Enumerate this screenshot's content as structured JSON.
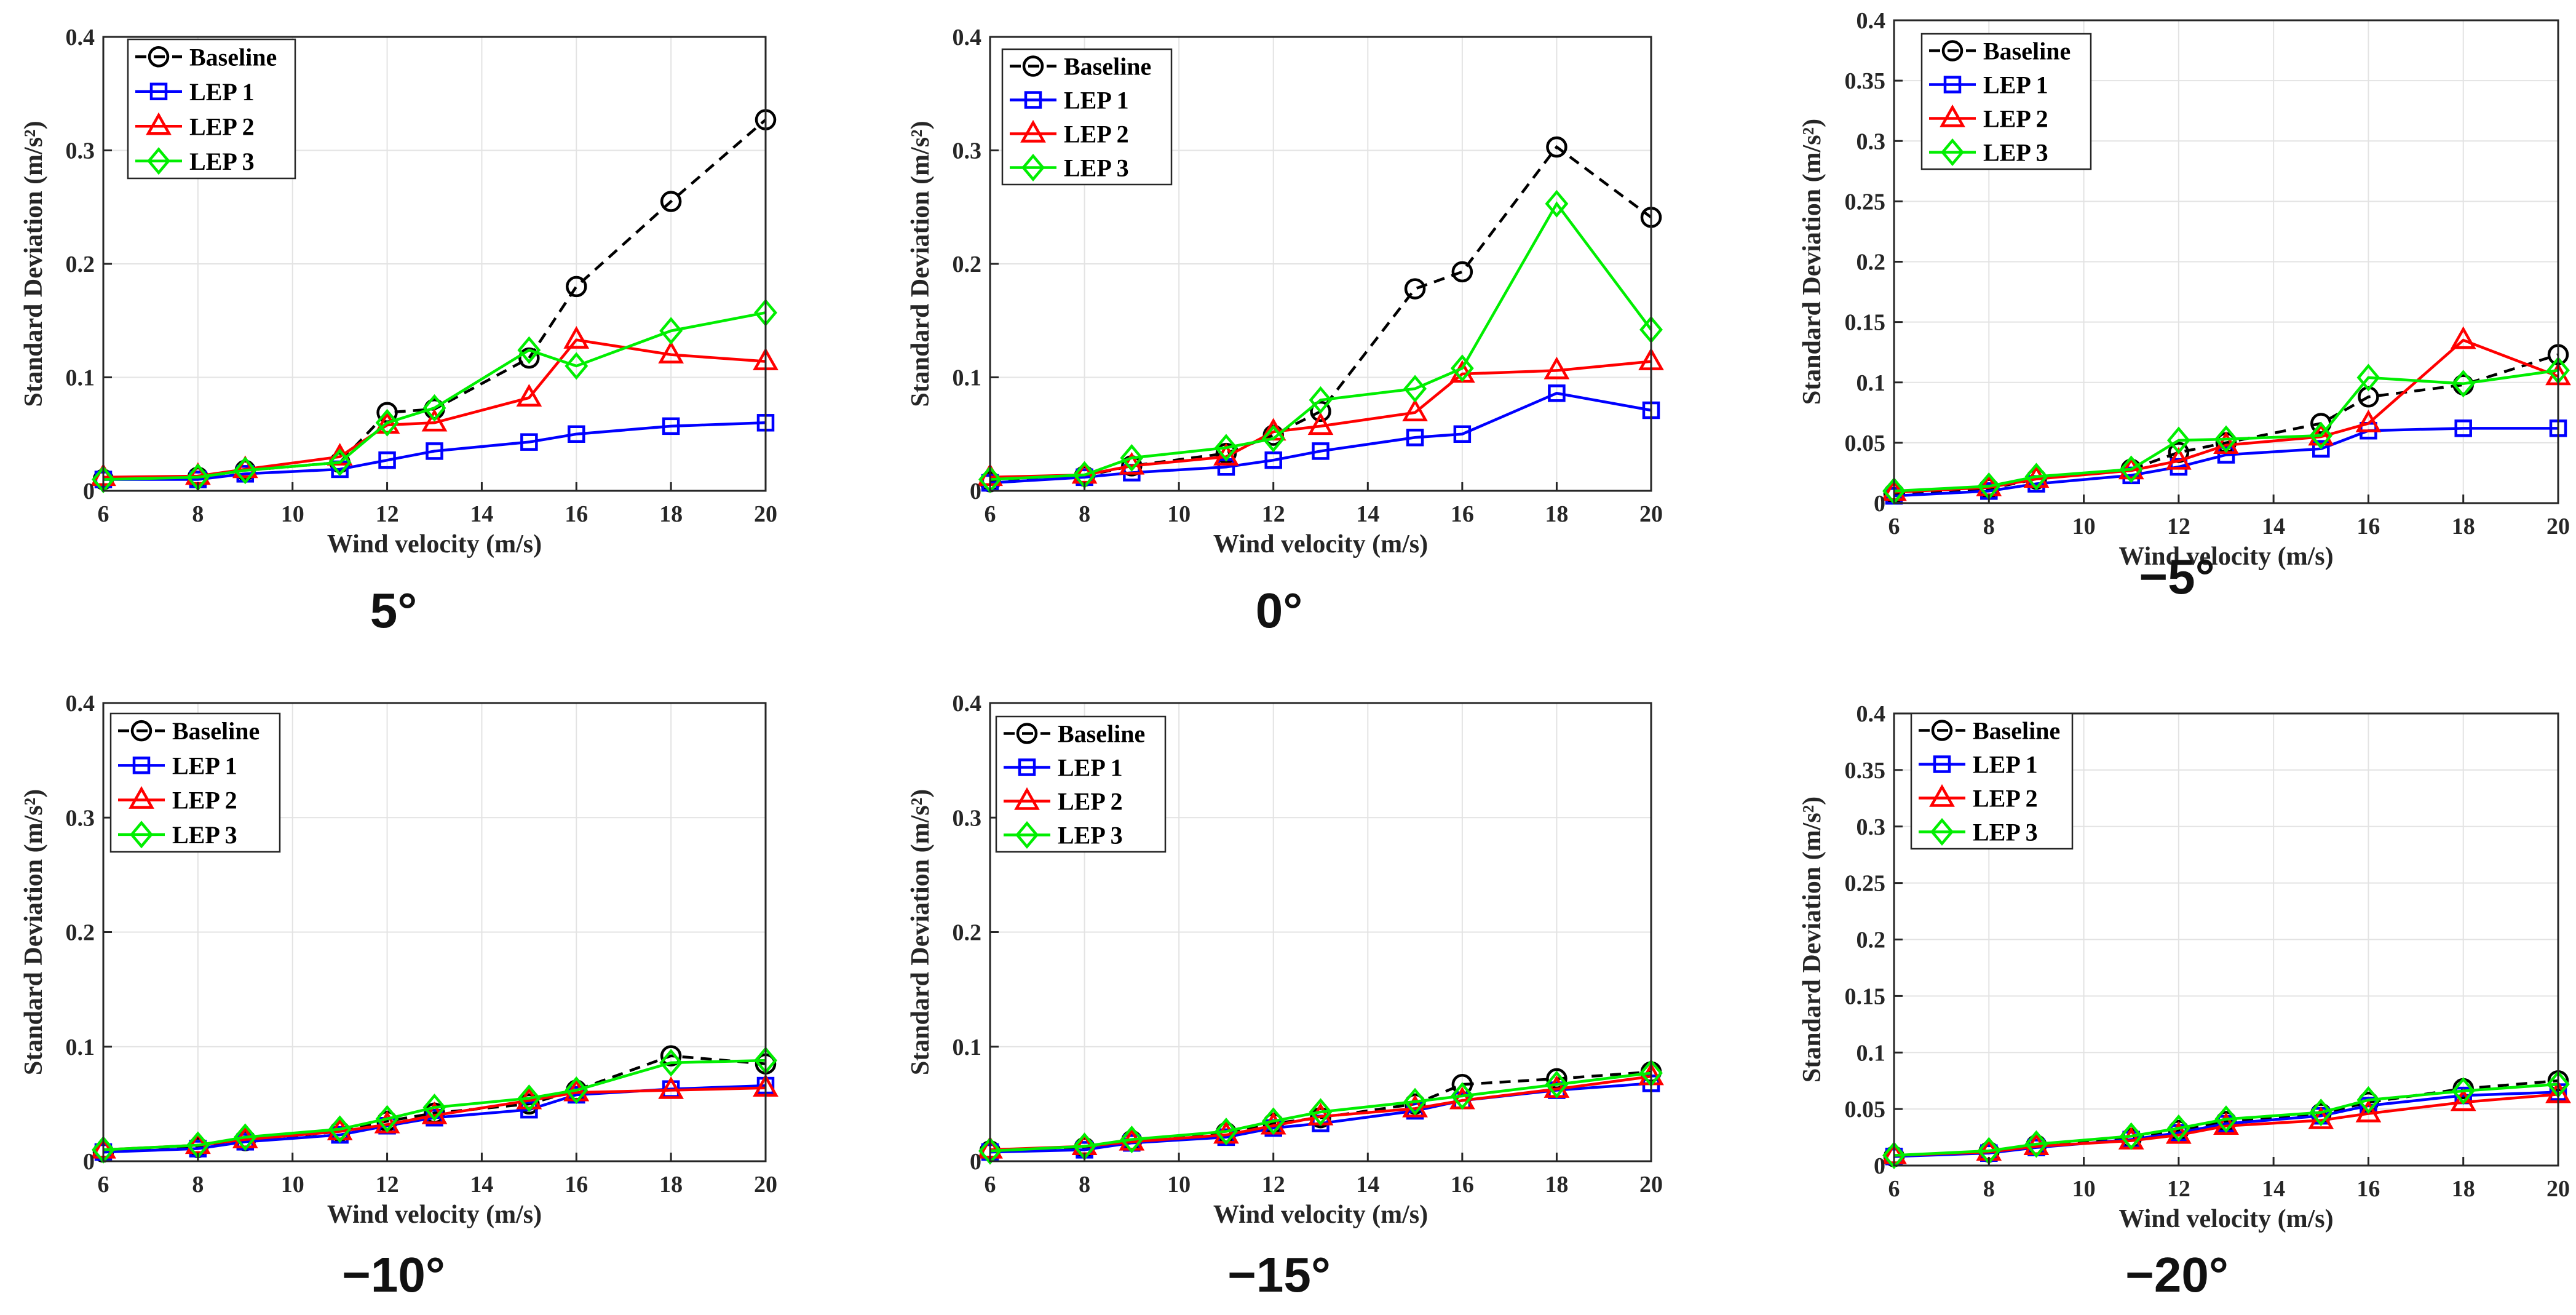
{
  "figure": {
    "legend_labels": [
      "Baseline",
      "LEP 1",
      "LEP 2",
      "LEP 3"
    ],
    "series_colors": {
      "Baseline": "#000000",
      "LEP 1": "#0000ff",
      "LEP 2": "#ff0000",
      "LEP 3": "#00ee00"
    }
  },
  "chart_data": [
    {
      "type": "line",
      "title": "",
      "caption": "5°",
      "xlabel": "Wind velocity (m/s)",
      "ylabel": "Standard Deviation (m/s²)",
      "xlim": [
        6,
        20
      ],
      "ylim": [
        0,
        0.4
      ],
      "xticks": [
        6,
        8,
        10,
        12,
        14,
        16,
        18,
        20
      ],
      "yticks": [
        0,
        0.1,
        0.2,
        0.3,
        0.4
      ],
      "yticklabels": [
        "0",
        "0.1",
        "0.2",
        "0.3",
        "0.4"
      ],
      "grid": true,
      "legend": "top-left",
      "x": [
        6,
        8,
        9,
        11,
        12,
        13,
        15,
        16,
        18,
        20
      ],
      "series": [
        {
          "name": "Baseline",
          "marker": "circle",
          "dash": true,
          "values": [
            0.01,
            0.012,
            0.018,
            0.025,
            0.069,
            0.072,
            0.117,
            0.18,
            0.255,
            0.327
          ]
        },
        {
          "name": "LEP 1",
          "marker": "square",
          "dash": false,
          "values": [
            0.01,
            0.01,
            0.015,
            0.019,
            0.027,
            0.035,
            0.043,
            0.05,
            0.057,
            0.06
          ]
        },
        {
          "name": "LEP 2",
          "marker": "triangle",
          "dash": false,
          "values": [
            0.012,
            0.013,
            0.019,
            0.03,
            0.058,
            0.06,
            0.082,
            0.133,
            0.12,
            0.114
          ]
        },
        {
          "name": "LEP 3",
          "marker": "diamond",
          "dash": false,
          "values": [
            0.01,
            0.012,
            0.018,
            0.025,
            0.06,
            0.073,
            0.124,
            0.11,
            0.141,
            0.157
          ]
        }
      ]
    },
    {
      "type": "line",
      "title": "",
      "caption": "0°",
      "xlabel": "Wind velocity (m/s)",
      "ylabel": "Standard Deviation (m/s²)",
      "xlim": [
        6,
        20
      ],
      "ylim": [
        0,
        0.4
      ],
      "xticks": [
        6,
        8,
        10,
        12,
        14,
        16,
        18,
        20
      ],
      "yticks": [
        0,
        0.1,
        0.2,
        0.3,
        0.4
      ],
      "yticklabels": [
        "0",
        "0.1",
        "0.2",
        "0.3",
        "0.4"
      ],
      "grid": true,
      "legend": "top-left",
      "x": [
        6,
        8,
        9,
        11,
        12,
        13,
        15,
        16,
        18,
        20
      ],
      "series": [
        {
          "name": "Baseline",
          "marker": "circle",
          "dash": true,
          "values": [
            0.008,
            0.013,
            0.022,
            0.033,
            0.049,
            0.07,
            0.178,
            0.193,
            0.303,
            0.241
          ]
        },
        {
          "name": "LEP 1",
          "marker": "square",
          "dash": false,
          "values": [
            0.007,
            0.012,
            0.016,
            0.021,
            0.027,
            0.035,
            0.047,
            0.05,
            0.086,
            0.071
          ]
        },
        {
          "name": "LEP 2",
          "marker": "triangle",
          "dash": false,
          "values": [
            0.012,
            0.014,
            0.022,
            0.03,
            0.052,
            0.057,
            0.069,
            0.103,
            0.106,
            0.114
          ]
        },
        {
          "name": "LEP 3",
          "marker": "diamond",
          "dash": false,
          "values": [
            0.01,
            0.014,
            0.029,
            0.038,
            0.046,
            0.08,
            0.09,
            0.108,
            0.253,
            0.142
          ]
        }
      ]
    },
    {
      "type": "line",
      "title": "",
      "caption": "−5°",
      "xlabel": "Wind velocity (m/s)",
      "ylabel": "Standard Deviation (m/s²)",
      "xlim": [
        6,
        20
      ],
      "ylim": [
        0,
        0.4
      ],
      "xticks": [
        6,
        8,
        10,
        12,
        14,
        16,
        18,
        20
      ],
      "yticks": [
        0,
        0.05,
        0.1,
        0.15,
        0.2,
        0.25,
        0.3,
        0.35,
        0.4
      ],
      "yticklabels": [
        "0",
        "0.05",
        "0.1",
        "0.15",
        "0.2",
        "0.25",
        "0.3",
        "0.35",
        "0.4"
      ],
      "grid": true,
      "legend": "top-left",
      "x": [
        6,
        8,
        9,
        11,
        12,
        13,
        15,
        16,
        18,
        20
      ],
      "series": [
        {
          "name": "Baseline",
          "marker": "circle",
          "dash": true,
          "values": [
            0.008,
            0.012,
            0.02,
            0.028,
            0.042,
            0.05,
            0.066,
            0.088,
            0.098,
            0.123
          ]
        },
        {
          "name": "LEP 1",
          "marker": "square",
          "dash": false,
          "values": [
            0.006,
            0.01,
            0.016,
            0.023,
            0.03,
            0.04,
            0.045,
            0.06,
            0.062,
            0.062
          ]
        },
        {
          "name": "LEP 2",
          "marker": "triangle",
          "dash": false,
          "values": [
            0.009,
            0.013,
            0.02,
            0.027,
            0.035,
            0.048,
            0.055,
            0.066,
            0.135,
            0.105
          ]
        },
        {
          "name": "LEP 3",
          "marker": "diamond",
          "dash": false,
          "values": [
            0.01,
            0.014,
            0.022,
            0.028,
            0.052,
            0.053,
            0.056,
            0.104,
            0.099,
            0.11
          ]
        }
      ]
    },
    {
      "type": "line",
      "title": "",
      "caption": "−10°",
      "xlabel": "Wind velocity (m/s)",
      "ylabel": "Standard Deviation (m/s²)",
      "xlim": [
        6,
        20
      ],
      "ylim": [
        0,
        0.4
      ],
      "xticks": [
        6,
        8,
        10,
        12,
        14,
        16,
        18,
        20
      ],
      "yticks": [
        0,
        0.1,
        0.2,
        0.3,
        0.4
      ],
      "yticklabels": [
        "0",
        "0.1",
        "0.2",
        "0.3",
        "0.4"
      ],
      "grid": true,
      "legend": "top-left",
      "x": [
        6,
        8,
        9,
        11,
        12,
        13,
        15,
        16,
        18,
        20
      ],
      "series": [
        {
          "name": "Baseline",
          "marker": "circle",
          "dash": true,
          "values": [
            0.008,
            0.012,
            0.018,
            0.026,
            0.035,
            0.042,
            0.05,
            0.062,
            0.092,
            0.085
          ]
        },
        {
          "name": "LEP 1",
          "marker": "square",
          "dash": false,
          "values": [
            0.008,
            0.011,
            0.017,
            0.023,
            0.031,
            0.038,
            0.045,
            0.058,
            0.063,
            0.066
          ]
        },
        {
          "name": "LEP 2",
          "marker": "triangle",
          "dash": false,
          "values": [
            0.01,
            0.014,
            0.019,
            0.026,
            0.032,
            0.04,
            0.053,
            0.06,
            0.062,
            0.064
          ]
        },
        {
          "name": "LEP 3",
          "marker": "diamond",
          "dash": false,
          "values": [
            0.01,
            0.014,
            0.021,
            0.028,
            0.037,
            0.047,
            0.055,
            0.062,
            0.086,
            0.088
          ]
        }
      ]
    },
    {
      "type": "line",
      "title": "",
      "caption": "−15°",
      "xlabel": "Wind velocity (m/s)",
      "ylabel": "Standard Deviation (m/s²)",
      "xlim": [
        6,
        20
      ],
      "ylim": [
        0,
        0.4
      ],
      "xticks": [
        6,
        8,
        10,
        12,
        14,
        16,
        18,
        20
      ],
      "yticks": [
        0,
        0.1,
        0.2,
        0.3,
        0.4
      ],
      "yticklabels": [
        "0",
        "0.1",
        "0.2",
        "0.3",
        "0.4"
      ],
      "grid": true,
      "legend": "top-left",
      "x": [
        6,
        8,
        9,
        11,
        12,
        13,
        15,
        16,
        18,
        20
      ],
      "series": [
        {
          "name": "Baseline",
          "marker": "circle",
          "dash": true,
          "values": [
            0.009,
            0.012,
            0.018,
            0.025,
            0.033,
            0.038,
            0.05,
            0.067,
            0.072,
            0.078
          ]
        },
        {
          "name": "LEP 1",
          "marker": "square",
          "dash": false,
          "values": [
            0.008,
            0.01,
            0.016,
            0.021,
            0.029,
            0.033,
            0.044,
            0.053,
            0.062,
            0.068
          ]
        },
        {
          "name": "LEP 2",
          "marker": "triangle",
          "dash": false,
          "values": [
            0.01,
            0.013,
            0.017,
            0.023,
            0.031,
            0.039,
            0.046,
            0.053,
            0.063,
            0.074
          ]
        },
        {
          "name": "LEP 3",
          "marker": "diamond",
          "dash": false,
          "values": [
            0.009,
            0.013,
            0.019,
            0.026,
            0.035,
            0.043,
            0.052,
            0.057,
            0.067,
            0.077
          ]
        }
      ]
    },
    {
      "type": "line",
      "title": "",
      "caption": "−20°",
      "xlabel": "Wind velocity (m/s)",
      "ylabel": "Standard Deviation (m/s²)",
      "xlim": [
        6,
        20
      ],
      "ylim": [
        0,
        0.4
      ],
      "xticks": [
        6,
        8,
        10,
        12,
        14,
        16,
        18,
        20
      ],
      "yticks": [
        0,
        0.05,
        0.1,
        0.15,
        0.2,
        0.25,
        0.3,
        0.35,
        0.4
      ],
      "yticklabels": [
        "0",
        "0.05",
        "0.1",
        "0.15",
        "0.2",
        "0.25",
        "0.3",
        "0.35",
        "0.4"
      ],
      "grid": true,
      "legend": "top-left",
      "x": [
        6,
        8,
        9,
        11,
        12,
        13,
        15,
        16,
        18,
        20
      ],
      "series": [
        {
          "name": "Baseline",
          "marker": "circle",
          "dash": true,
          "values": [
            0.008,
            0.012,
            0.018,
            0.024,
            0.031,
            0.039,
            0.046,
            0.056,
            0.068,
            0.075
          ]
        },
        {
          "name": "LEP 1",
          "marker": "square",
          "dash": false,
          "values": [
            0.008,
            0.011,
            0.016,
            0.023,
            0.029,
            0.037,
            0.044,
            0.053,
            0.062,
            0.065
          ]
        },
        {
          "name": "LEP 2",
          "marker": "triangle",
          "dash": false,
          "values": [
            0.009,
            0.012,
            0.017,
            0.022,
            0.027,
            0.035,
            0.04,
            0.046,
            0.056,
            0.063
          ]
        },
        {
          "name": "LEP 3",
          "marker": "diamond",
          "dash": false,
          "values": [
            0.009,
            0.013,
            0.019,
            0.026,
            0.033,
            0.041,
            0.047,
            0.058,
            0.066,
            0.072
          ]
        }
      ]
    }
  ]
}
